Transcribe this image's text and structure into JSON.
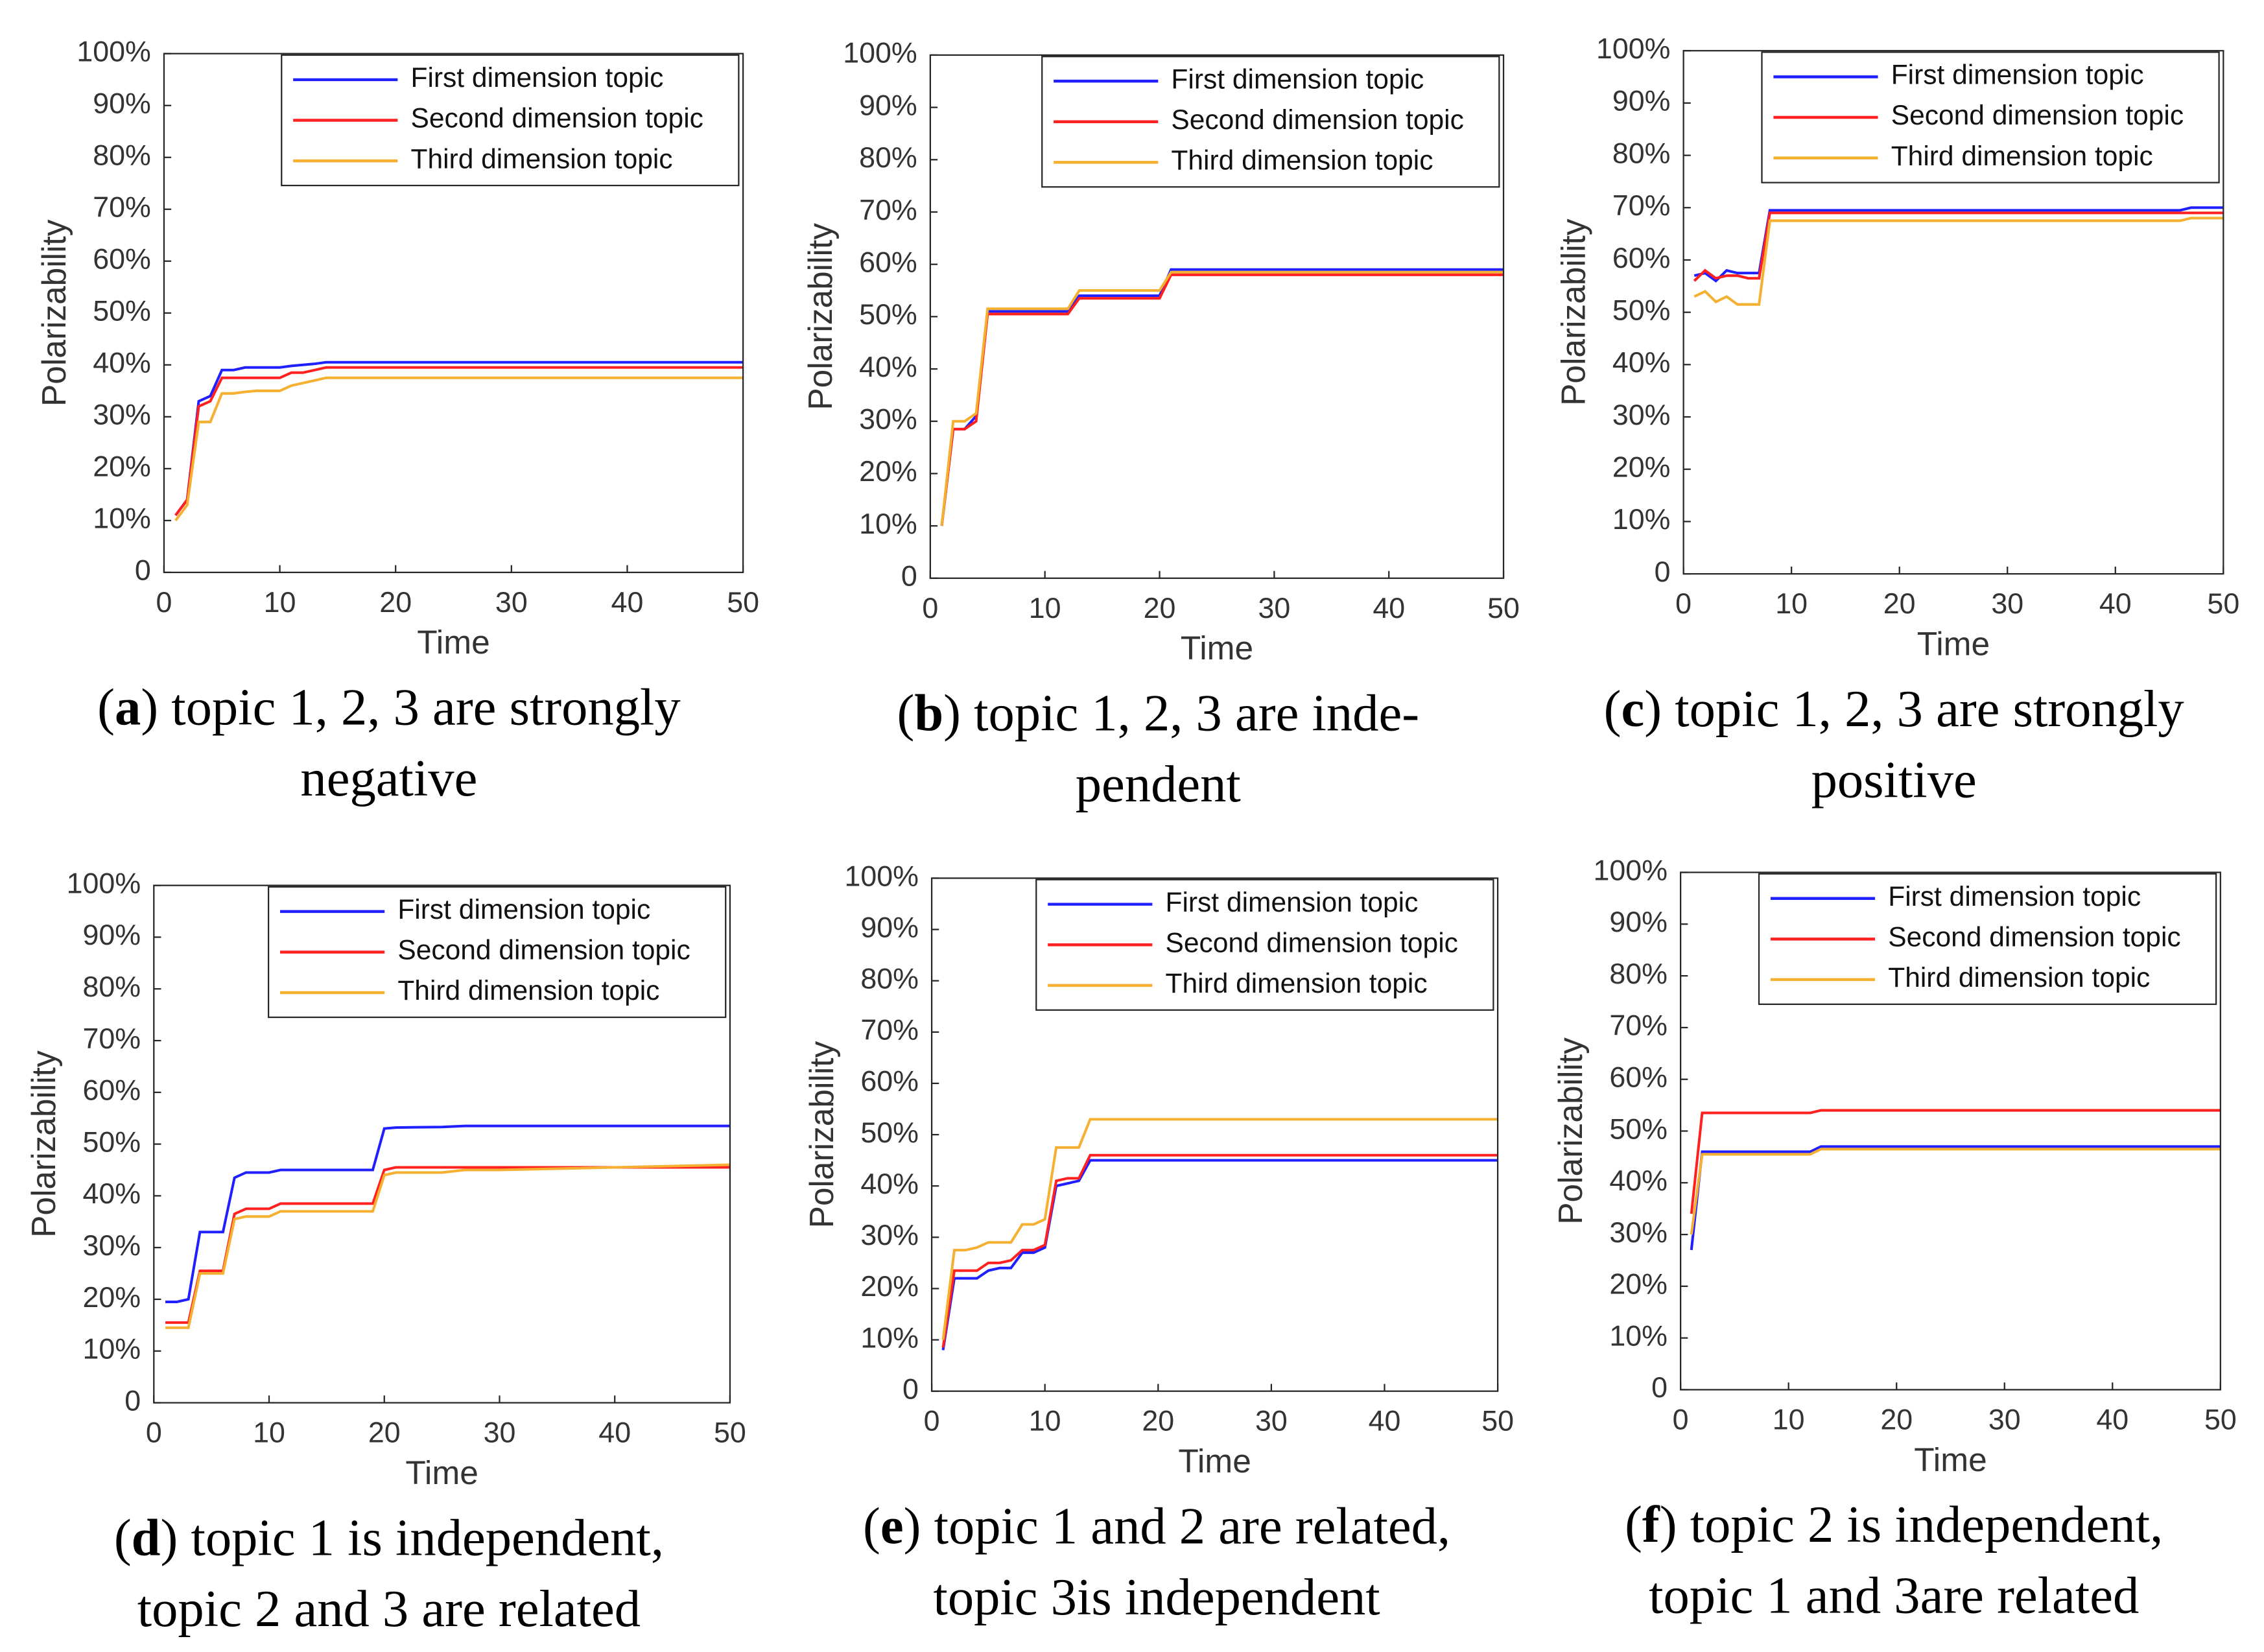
{
  "chart_data": [
    {
      "type": "line",
      "caption": [
        [
          "(",
          "a",
          ") topic 1, 2, 3 are strongly"
        ],
        [
          "negative"
        ]
      ],
      "xlabel": "Time",
      "ylabel": "Polarizability",
      "legend": "upper right",
      "x": [
        1,
        2,
        3,
        4,
        5,
        6,
        7,
        8,
        10,
        11,
        12,
        13,
        14,
        20,
        30,
        40,
        50
      ],
      "series": [
        {
          "name": "First dimension topic",
          "color": "#1f1fff",
          "values": [
            11,
            14,
            33,
            34,
            39,
            39,
            39.5,
            39.5,
            39.5,
            39.8,
            40,
            40.2,
            40.5,
            40.5,
            40.5,
            40.5,
            40.5
          ]
        },
        {
          "name": "Second dimension topic",
          "color": "#ff2020",
          "values": [
            11,
            14,
            32,
            33,
            37.5,
            37.5,
            37.5,
            37.5,
            37.5,
            38.5,
            38.5,
            39,
            39.5,
            39.5,
            39.5,
            39.5,
            39.5
          ]
        },
        {
          "name": "Third dimension topic",
          "color": "#f5b031",
          "values": [
            10,
            13,
            29,
            29,
            34.5,
            34.5,
            34.8,
            35,
            35,
            36,
            36.5,
            37,
            37.5,
            37.5,
            37.5,
            37.5,
            37.5
          ]
        }
      ],
      "xlim": [
        0,
        50
      ],
      "xticks": [
        0,
        10,
        20,
        30,
        40,
        50
      ],
      "ylim": [
        0,
        100
      ],
      "yticks": [
        0,
        {
          "value": 10,
          "label": "10%"
        },
        {
          "value": 20,
          "label": "20%"
        },
        {
          "value": 30,
          "label": "30%"
        },
        {
          "value": 40,
          "label": "40%"
        },
        {
          "value": 50,
          "label": "50%"
        },
        {
          "value": 60,
          "label": "60%"
        },
        {
          "value": 70,
          "label": "70%"
        },
        {
          "value": 80,
          "label": "80%"
        },
        {
          "value": 90,
          "label": "90%"
        },
        {
          "value": 100,
          "label": "100%"
        }
      ]
    },
    {
      "type": "line",
      "caption": [
        [
          "(",
          "b",
          ") topic 1, 2, 3 are inde-"
        ],
        [
          "pendent"
        ]
      ],
      "xlabel": "Time",
      "ylabel": "Polarizability",
      "legend": "upper right",
      "x": [
        1,
        2,
        3,
        4,
        5,
        6,
        10,
        11,
        12,
        13,
        14,
        20,
        21,
        30,
        40,
        50
      ],
      "series": [
        {
          "name": "First dimension topic",
          "color": "#1f1fff",
          "values": [
            10,
            28.5,
            28.5,
            31,
            51,
            51,
            51,
            51,
            51,
            54,
            54,
            54,
            59,
            59,
            59,
            59
          ]
        },
        {
          "name": "Second dimension topic",
          "color": "#ff2020",
          "values": [
            10,
            28.5,
            28.5,
            30,
            50.5,
            50.5,
            50.5,
            50.5,
            50.5,
            53.5,
            53.5,
            53.5,
            58,
            58,
            58,
            58
          ]
        },
        {
          "name": "Third dimension topic",
          "color": "#f5b031",
          "values": [
            10,
            30,
            30,
            31.5,
            51.5,
            51.5,
            51.5,
            51.5,
            51.5,
            55,
            55,
            55,
            58.5,
            58.5,
            58.5,
            58.5
          ]
        }
      ],
      "xlim": [
        0,
        50
      ],
      "xticks": [
        0,
        10,
        20,
        30,
        40,
        50
      ],
      "ylim": [
        0,
        100
      ],
      "yticks": [
        0,
        {
          "value": 10,
          "label": "10%"
        },
        {
          "value": 20,
          "label": "20%"
        },
        {
          "value": 30,
          "label": "30%"
        },
        {
          "value": 40,
          "label": "40%"
        },
        {
          "value": 50,
          "label": "50%"
        },
        {
          "value": 60,
          "label": "60%"
        },
        {
          "value": 70,
          "label": "70%"
        },
        {
          "value": 80,
          "label": "80%"
        },
        {
          "value": 90,
          "label": "90%"
        },
        {
          "value": 100,
          "label": "100%"
        }
      ]
    },
    {
      "type": "line",
      "caption": [
        [
          "(",
          "c",
          ") topic 1, 2, 3 are strongly"
        ],
        [
          "positive"
        ]
      ],
      "xlabel": "Time",
      "ylabel": "Polarizability",
      "legend": "upper right",
      "x": [
        1,
        2,
        3,
        4,
        5,
        6,
        7,
        8,
        10,
        20,
        30,
        40,
        46,
        47,
        50
      ],
      "series": [
        {
          "name": "First dimension topic",
          "color": "#1f1fff",
          "values": [
            57,
            57.5,
            56,
            58,
            57.5,
            57.5,
            57.5,
            69.5,
            69.5,
            69.5,
            69.5,
            69.5,
            69.5,
            70,
            70
          ]
        },
        {
          "name": "Second dimension topic",
          "color": "#ff2020",
          "values": [
            56,
            58,
            56.5,
            57,
            57,
            56.5,
            56.5,
            69,
            69,
            69,
            69,
            69,
            69,
            69,
            69
          ]
        },
        {
          "name": "Third dimension topic",
          "color": "#f5b031",
          "values": [
            53,
            54,
            52,
            53,
            51.5,
            51.5,
            51.5,
            67.5,
            67.5,
            67.5,
            67.5,
            67.5,
            67.5,
            68,
            68
          ]
        }
      ],
      "xlim": [
        0,
        50
      ],
      "xticks": [
        0,
        10,
        20,
        30,
        40,
        50
      ],
      "ylim": [
        0,
        100
      ],
      "yticks": [
        0,
        {
          "value": 10,
          "label": "10%"
        },
        {
          "value": 20,
          "label": "20%"
        },
        {
          "value": 30,
          "label": "30%"
        },
        {
          "value": 40,
          "label": "40%"
        },
        {
          "value": 50,
          "label": "50%"
        },
        {
          "value": 60,
          "label": "60%"
        },
        {
          "value": 70,
          "label": "70%"
        },
        {
          "value": 80,
          "label": "80%"
        },
        {
          "value": 90,
          "label": "90%"
        },
        {
          "value": 100,
          "label": "100%"
        }
      ]
    },
    {
      "type": "line",
      "caption": [
        [
          "(",
          "d",
          ") topic 1 is independent,"
        ],
        [
          "topic 2 and 3 are related"
        ]
      ],
      "xlabel": "Time",
      "ylabel": "Polarizability",
      "legend": "upper right",
      "x": [
        1,
        2,
        3,
        4,
        5,
        6,
        7,
        8,
        10,
        11,
        12,
        18,
        19,
        20,
        21,
        25,
        27,
        30,
        40,
        50
      ],
      "series": [
        {
          "name": "First dimension topic",
          "color": "#1f1fff",
          "values": [
            19.5,
            19.5,
            20,
            33,
            33,
            33,
            43.5,
            44.5,
            44.5,
            45,
            45,
            45,
            45,
            53,
            53.2,
            53.3,
            53.5,
            53.5,
            53.5,
            53.5
          ]
        },
        {
          "name": "Second dimension topic",
          "color": "#ff2020",
          "values": [
            15.5,
            15.5,
            15.5,
            25.5,
            25.5,
            25.5,
            36.5,
            37.5,
            37.5,
            38.5,
            38.5,
            38.5,
            38.5,
            45,
            45.5,
            45.5,
            45.5,
            45.5,
            45.5,
            45.5
          ]
        },
        {
          "name": "Third dimension topic",
          "color": "#f5b031",
          "values": [
            14.5,
            14.5,
            14.5,
            25,
            25,
            25,
            35.5,
            36,
            36,
            37,
            37,
            37,
            37,
            44,
            44.5,
            44.5,
            45,
            45,
            45.5,
            46
          ]
        }
      ],
      "xlim": [
        0,
        50
      ],
      "xticks": [
        0,
        10,
        20,
        30,
        40,
        50
      ],
      "ylim": [
        0,
        100
      ],
      "yticks": [
        0,
        {
          "value": 10,
          "label": "10%"
        },
        {
          "value": 20,
          "label": "20%"
        },
        {
          "value": 30,
          "label": "30%"
        },
        {
          "value": 40,
          "label": "40%"
        },
        {
          "value": 50,
          "label": "50%"
        },
        {
          "value": 60,
          "label": "60%"
        },
        {
          "value": 70,
          "label": "70%"
        },
        {
          "value": 80,
          "label": "80%"
        },
        {
          "value": 90,
          "label": "90%"
        },
        {
          "value": 100,
          "label": "100%"
        }
      ]
    },
    {
      "type": "line",
      "caption": [
        [
          "(",
          "e",
          ") topic 1 and 2 are related,"
        ],
        [
          "topic 3is independent"
        ]
      ],
      "xlabel": "Time",
      "ylabel": "Polarizability",
      "legend": "upper right",
      "x": [
        1,
        2,
        3,
        4,
        5,
        6,
        7,
        8,
        9,
        10,
        11,
        12,
        13,
        14,
        20,
        30,
        40,
        50
      ],
      "series": [
        {
          "name": "First dimension topic",
          "color": "#1f1fff",
          "values": [
            8,
            22,
            22,
            22,
            23.5,
            24,
            24,
            27,
            27,
            28,
            40,
            40.5,
            41,
            45,
            45,
            45,
            45,
            45
          ]
        },
        {
          "name": "Second dimension topic",
          "color": "#ff2020",
          "values": [
            8.5,
            23.5,
            23.5,
            23.5,
            25,
            25,
            25.5,
            27.5,
            27.5,
            28.5,
            41,
            41.5,
            41.5,
            46,
            46,
            46,
            46,
            46
          ]
        },
        {
          "name": "Third dimension topic",
          "color": "#f5b031",
          "values": [
            10,
            27.5,
            27.5,
            28,
            29,
            29,
            29,
            32.5,
            32.5,
            33.5,
            47.5,
            47.5,
            47.5,
            53,
            53,
            53,
            53,
            53
          ]
        }
      ],
      "xlim": [
        0,
        50
      ],
      "xticks": [
        0,
        10,
        20,
        30,
        40,
        50
      ],
      "ylim": [
        0,
        100
      ],
      "yticks": [
        0,
        {
          "value": 10,
          "label": "10%"
        },
        {
          "value": 20,
          "label": "20%"
        },
        {
          "value": 30,
          "label": "30%"
        },
        {
          "value": 40,
          "label": "40%"
        },
        {
          "value": 50,
          "label": "50%"
        },
        {
          "value": 60,
          "label": "60%"
        },
        {
          "value": 70,
          "label": "70%"
        },
        {
          "value": 80,
          "label": "80%"
        },
        {
          "value": 90,
          "label": "90%"
        },
        {
          "value": 100,
          "label": "100%"
        }
      ]
    },
    {
      "type": "line",
      "caption": [
        [
          "(",
          "f",
          ") topic 2 is independent,"
        ],
        [
          "topic 1 and 3are related"
        ]
      ],
      "xlabel": "Time",
      "ylabel": "Polarizability",
      "legend": "upper right",
      "x": [
        1,
        2,
        3,
        10,
        12,
        13,
        20,
        30,
        40,
        50
      ],
      "series": [
        {
          "name": "First dimension topic",
          "color": "#1f1fff",
          "values": [
            27,
            46,
            46,
            46,
            46,
            47,
            47,
            47,
            47,
            47
          ]
        },
        {
          "name": "Second dimension topic",
          "color": "#ff2020",
          "values": [
            34,
            53.5,
            53.5,
            53.5,
            53.5,
            54,
            54,
            54,
            54,
            54
          ]
        },
        {
          "name": "Third dimension topic",
          "color": "#f5b031",
          "values": [
            30,
            45.5,
            45.5,
            45.5,
            45.5,
            46.5,
            46.5,
            46.5,
            46.5,
            46.5
          ]
        }
      ],
      "xlim": [
        0,
        50
      ],
      "xticks": [
        0,
        10,
        20,
        30,
        40,
        50
      ],
      "ylim": [
        0,
        100
      ],
      "yticks": [
        0,
        {
          "value": 10,
          "label": "10%"
        },
        {
          "value": 20,
          "label": "20%"
        },
        {
          "value": 30,
          "label": "30%"
        },
        {
          "value": 40,
          "label": "40%"
        },
        {
          "value": 50,
          "label": "50%"
        },
        {
          "value": 60,
          "label": "60%"
        },
        {
          "value": 70,
          "label": "70%"
        },
        {
          "value": 80,
          "label": "80%"
        },
        {
          "value": 90,
          "label": "90%"
        },
        {
          "value": 100,
          "label": "100%"
        }
      ]
    }
  ]
}
